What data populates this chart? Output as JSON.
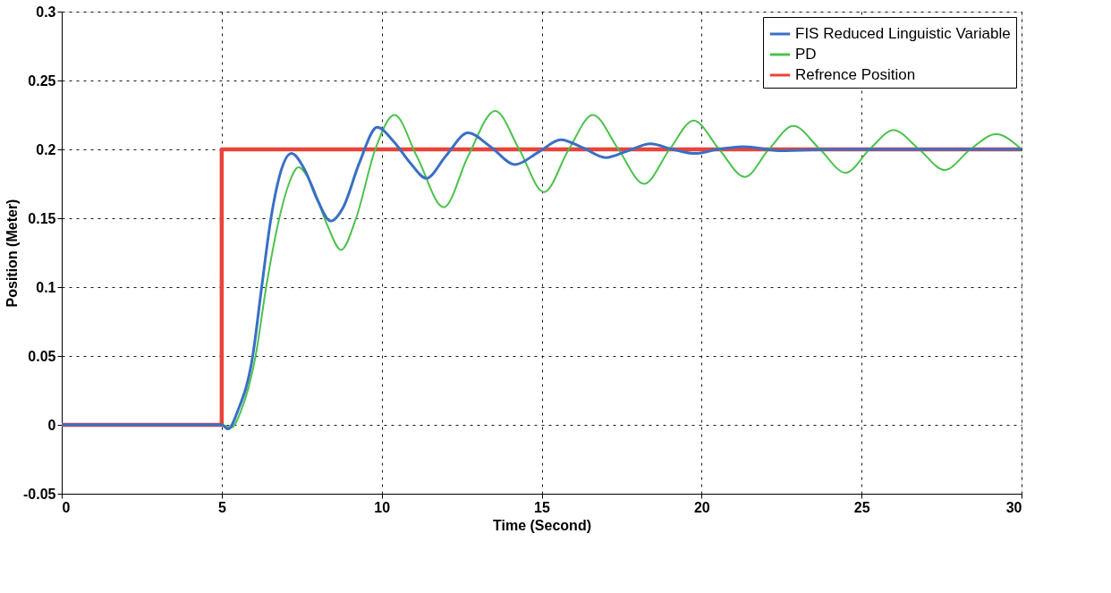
{
  "chart_data": {
    "type": "line",
    "xlabel": "Time (Second)",
    "ylabel": "Position (Meter)",
    "xlim": [
      0,
      30
    ],
    "ylim": [
      -0.05,
      0.3
    ],
    "xticks": [
      0,
      5,
      10,
      15,
      20,
      25,
      30
    ],
    "yticks": [
      -0.05,
      0,
      0.05,
      0.1,
      0.15,
      0.2,
      0.25,
      0.3
    ],
    "grid": true,
    "legend": "top right",
    "line_style": "solid",
    "marker": "none",
    "series": [
      {
        "name": "FIS Reduced Linguistic Variable",
        "color": "#3a6fc4",
        "x": [
          0,
          5,
          5.2,
          5.5,
          5.97,
          6.25,
          6.54,
          6.8,
          7.18,
          7.6,
          8.0,
          8.4,
          8.8,
          9.3,
          9.86,
          10.4,
          10.9,
          11.4,
          12.0,
          12.7,
          13.4,
          14.17,
          14.9,
          15.6,
          16.3,
          17.0,
          17.7,
          18.4,
          19.1,
          19.8,
          20.5,
          21.3,
          22.5,
          24,
          26,
          28,
          30
        ],
        "values": [
          0,
          0,
          -0.003,
          0.01,
          0.05,
          0.1,
          0.15,
          0.18,
          0.197,
          0.185,
          0.163,
          0.148,
          0.158,
          0.19,
          0.216,
          0.205,
          0.19,
          0.179,
          0.195,
          0.212,
          0.202,
          0.189,
          0.198,
          0.207,
          0.201,
          0.194,
          0.199,
          0.204,
          0.2,
          0.197,
          0.2,
          0.202,
          0.199,
          0.2,
          0.2,
          0.2,
          0.2
        ]
      },
      {
        "name": "PD",
        "color": "#4cc24c",
        "x": [
          0,
          5,
          5.3,
          5.6,
          6.06,
          6.39,
          6.8,
          7.1,
          7.4,
          7.8,
          8.3,
          8.73,
          9.2,
          9.8,
          10.4,
          11.1,
          11.94,
          12.7,
          13.55,
          14.3,
          15.07,
          15.85,
          16.6,
          17.4,
          18.2,
          19.0,
          19.75,
          20.55,
          21.35,
          22.1,
          22.87,
          23.7,
          24.5,
          25.25,
          26.0,
          26.8,
          27.6,
          28.4,
          29.2,
          30
        ],
        "values": [
          0,
          0,
          -0.002,
          0.01,
          0.05,
          0.1,
          0.15,
          0.175,
          0.187,
          0.175,
          0.145,
          0.127,
          0.15,
          0.2,
          0.225,
          0.195,
          0.158,
          0.195,
          0.228,
          0.2,
          0.169,
          0.2,
          0.225,
          0.2,
          0.175,
          0.2,
          0.221,
          0.2,
          0.18,
          0.2,
          0.217,
          0.2,
          0.183,
          0.2,
          0.214,
          0.2,
          0.185,
          0.2,
          0.211,
          0.2
        ]
      },
      {
        "name": "Refrence Position",
        "color": "#e8443a",
        "x": [
          0,
          5,
          5,
          30
        ],
        "values": [
          0,
          0,
          0.2,
          0.2
        ]
      }
    ]
  }
}
